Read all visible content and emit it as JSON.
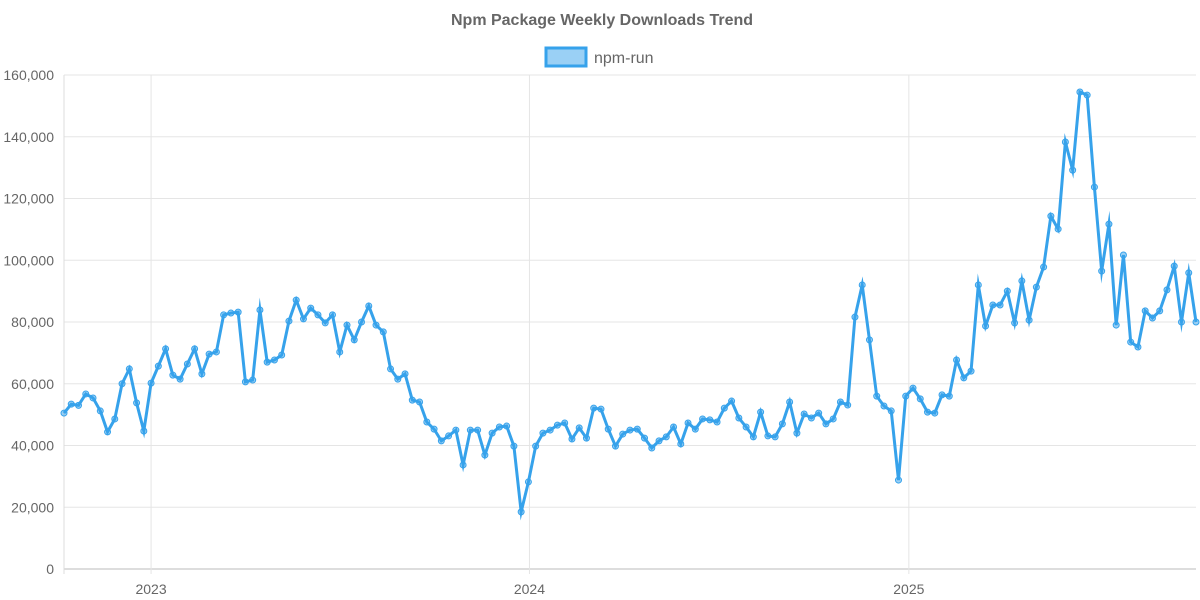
{
  "chart_data": {
    "type": "line",
    "title": "Npm Package Weekly Downloads Trend",
    "xlabel": "",
    "ylabel": "",
    "ylim": [
      0,
      160000
    ],
    "y_ticks": [
      "0",
      "20,000",
      "40,000",
      "60,000",
      "80,000",
      "100,000",
      "120,000",
      "140,000",
      "160,000"
    ],
    "x_ticks": [
      "2023",
      "2024",
      "2025"
    ],
    "x_tick_dates": [
      "2023-01-01",
      "2024-01-01",
      "2025-01-01"
    ],
    "grid": true,
    "legend_position": "top-center",
    "start_date": "2022-10-09",
    "interval_days": 7,
    "series": [
      {
        "name": "npm-run",
        "color": "#36a2eb",
        "fill": "rgba(54,162,235,0.5)",
        "values": [
          50500,
          53400,
          53000,
          56700,
          55400,
          51200,
          44400,
          48600,
          60000,
          64800,
          53800,
          44700,
          60200,
          65700,
          71300,
          62800,
          61500,
          66400,
          71300,
          63200,
          69600,
          70300,
          82300,
          82900,
          83200,
          60600,
          61200,
          83900,
          67000,
          67700,
          69300,
          80300,
          87100,
          81000,
          84500,
          82300,
          79700,
          82300,
          70300,
          79000,
          74200,
          80000,
          85200,
          79000,
          76800,
          64800,
          61500,
          63200,
          54700,
          54100,
          47600,
          45300,
          41500,
          43100,
          45000,
          33700,
          45000,
          45000,
          36900,
          44000,
          46000,
          46300,
          39800,
          18500,
          28200,
          39800,
          44000,
          45000,
          46600,
          47300,
          42100,
          45700,
          42400,
          52100,
          51800,
          45300,
          39800,
          43700,
          45000,
          45300,
          42400,
          39200,
          41500,
          42800,
          46000,
          40500,
          47300,
          45300,
          48600,
          48300,
          47600,
          52100,
          54400,
          48900,
          46000,
          42800,
          50800,
          43100,
          42800,
          47000,
          54100,
          44000,
          50200,
          48900,
          50500,
          47000,
          48600,
          54100,
          53100,
          81600,
          92000,
          74200,
          56000,
          52800,
          51200,
          28800,
          56000,
          58600,
          55100,
          50800,
          50500,
          56400,
          56000,
          67700,
          61900,
          64100,
          92000,
          78700,
          85500,
          85500,
          90000,
          79700,
          93300,
          80600,
          91300,
          97800,
          114300,
          110100,
          138300,
          129200,
          154500,
          153500,
          123700,
          96500,
          111700,
          79000,
          101700,
          73500,
          71900,
          83600,
          81300,
          83600,
          90400,
          98100,
          80000,
          95900,
          80000
        ]
      }
    ]
  }
}
